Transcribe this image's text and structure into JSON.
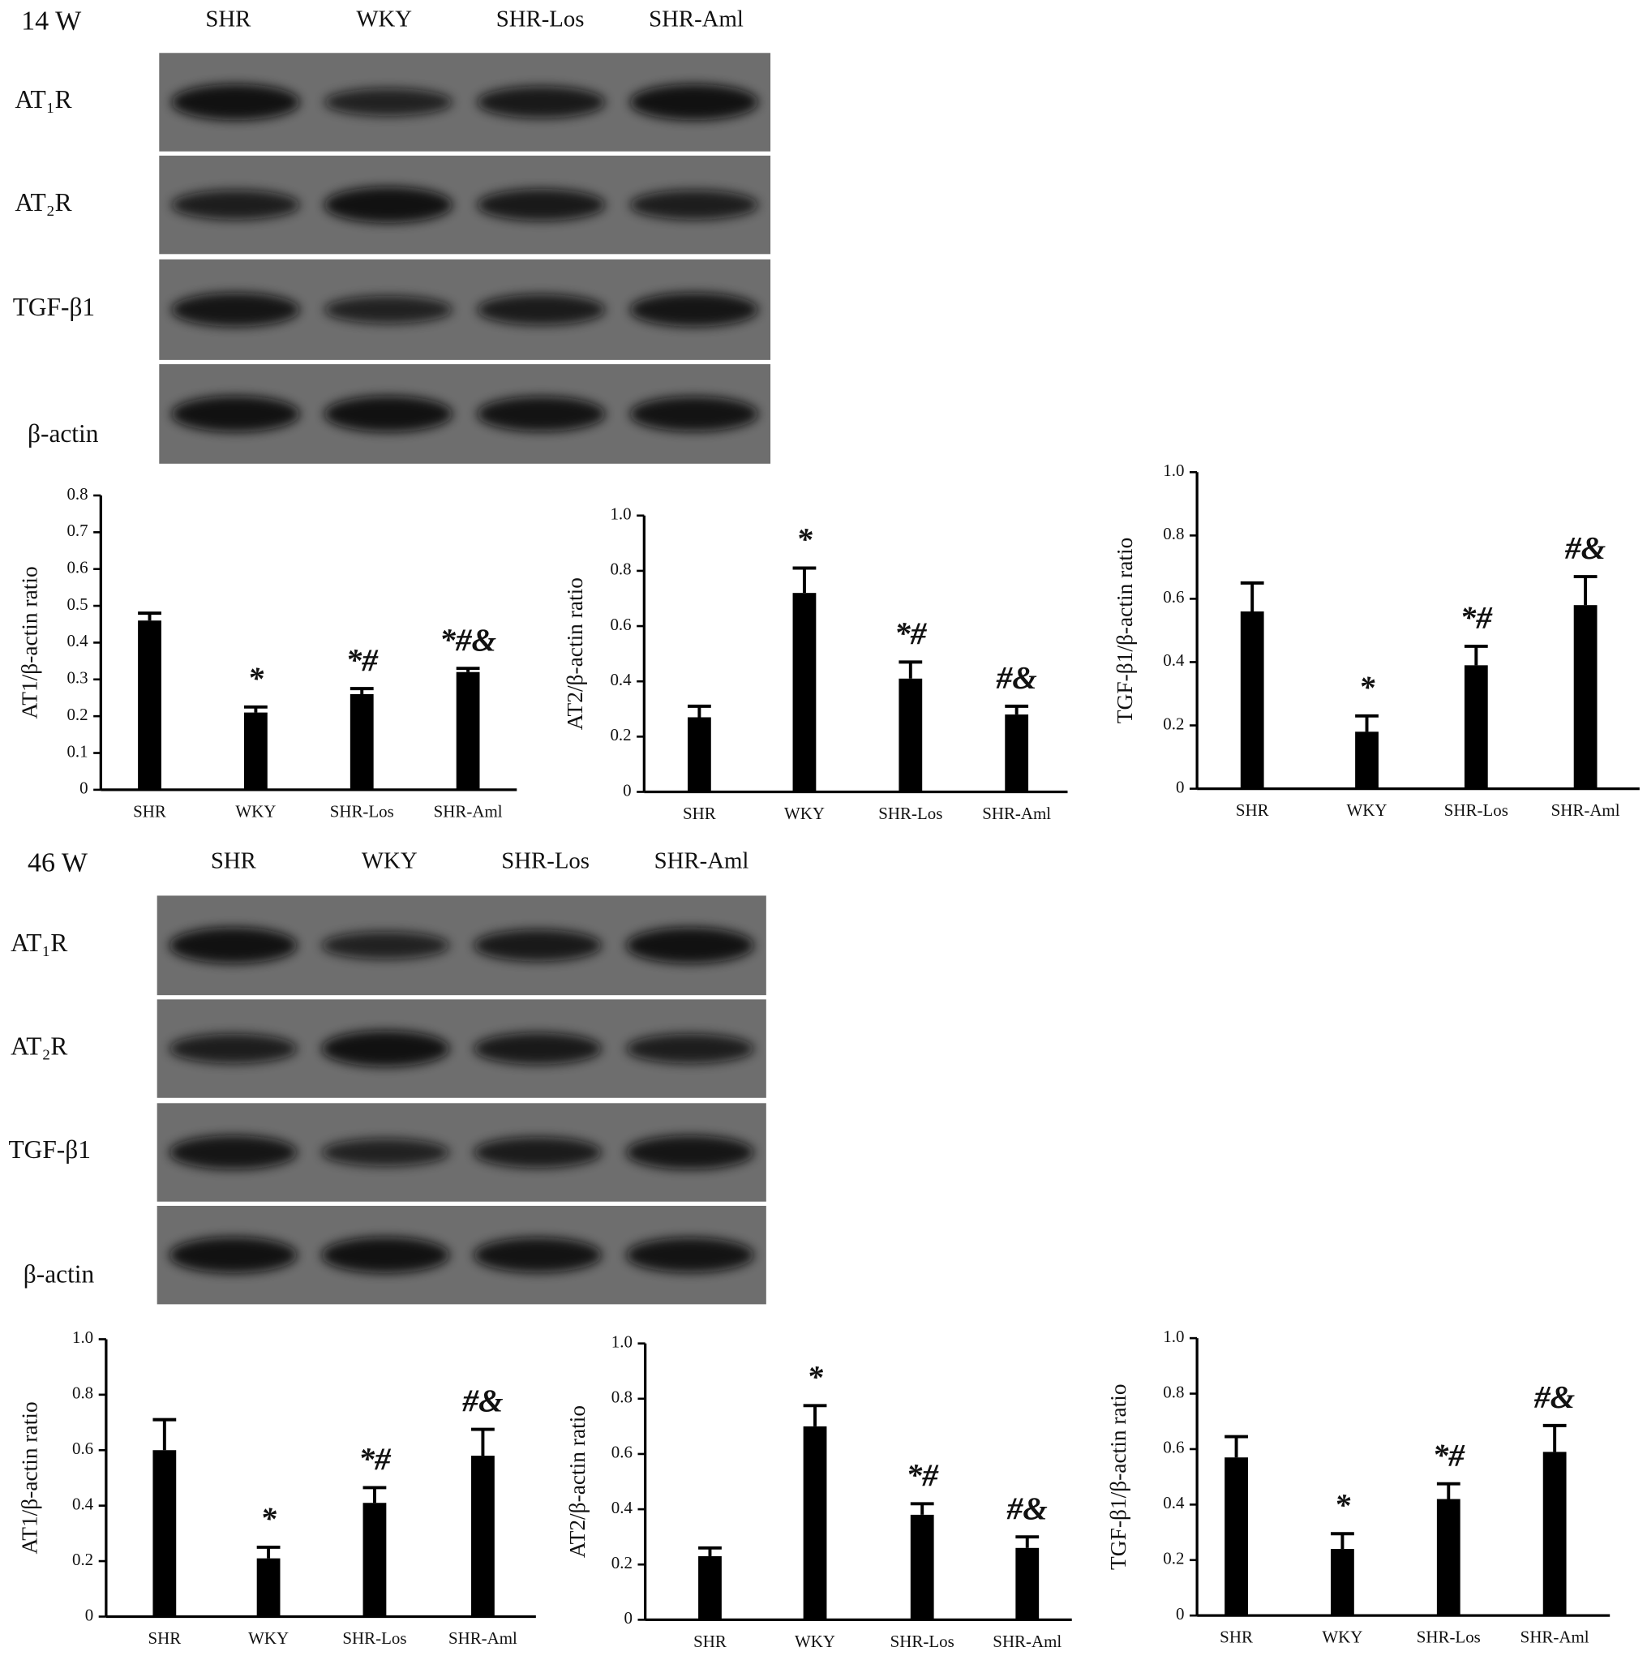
{
  "blots": [
    {
      "title": "14 W",
      "lanes": [
        "SHR",
        "WKY",
        "SHR-Los",
        "SHR-Aml"
      ],
      "proteins": [
        "AT₁R",
        "AT₂R",
        "TGF-β1",
        "β-actin"
      ]
    },
    {
      "title": "46 W",
      "lanes": [
        "SHR",
        "WKY",
        "SHR-Los",
        "SHR-Aml"
      ],
      "proteins": [
        "AT₁R",
        "AT₂R",
        "TGF-β1",
        "β-actin"
      ]
    }
  ],
  "chart_data": [
    {
      "type": "bar",
      "ylabel": "AT1/β-actin ratio",
      "categories": [
        "SHR",
        "WKY",
        "SHR-Los",
        "SHR-Aml"
      ],
      "values": [
        0.46,
        0.21,
        0.26,
        0.32
      ],
      "errors": [
        0.02,
        0.015,
        0.015,
        0.01
      ],
      "annotations": [
        null,
        "*",
        "*#",
        "*#&"
      ],
      "color": "#000000",
      "ylim": [
        0,
        0.8
      ],
      "yticks": [
        0,
        0.1,
        0.2,
        0.3,
        0.4,
        0.5,
        0.6,
        0.7,
        0.8
      ]
    },
    {
      "type": "bar",
      "ylabel": "AT2/β-actin ratio",
      "categories": [
        "SHR",
        "WKY",
        "SHR-Los",
        "SHR-Aml"
      ],
      "values": [
        0.27,
        0.72,
        0.41,
        0.28
      ],
      "errors": [
        0.04,
        0.09,
        0.06,
        0.03
      ],
      "annotations": [
        null,
        "*",
        "*#",
        "#&"
      ],
      "color": "#000000",
      "ylim": [
        0,
        1
      ],
      "yticks": [
        0,
        0.2,
        0.4,
        0.6,
        0.8,
        {
          "value": 1,
          "label": "1.0"
        }
      ]
    },
    {
      "type": "bar",
      "ylabel": "TGF-β1/β-actin ratio",
      "categories": [
        "SHR",
        "WKY",
        "SHR-Los",
        "SHR-Aml"
      ],
      "values": [
        0.56,
        0.18,
        0.39,
        0.58
      ],
      "errors": [
        0.09,
        0.05,
        0.06,
        0.09
      ],
      "annotations": [
        null,
        "*",
        "*#",
        "#&"
      ],
      "color": "#000000",
      "ylim": [
        0,
        1
      ],
      "yticks": [
        0,
        0.2,
        0.4,
        0.6,
        0.8,
        {
          "value": 1,
          "label": "1.0"
        }
      ]
    },
    {
      "type": "bar",
      "ylabel": "AT1/β-actin ratio",
      "categories": [
        "SHR",
        "WKY",
        "SHR-Los",
        "SHR-Aml"
      ],
      "values": [
        0.6,
        0.21,
        0.41,
        0.58
      ],
      "errors": [
        0.11,
        0.04,
        0.055,
        0.095
      ],
      "annotations": [
        null,
        "*",
        "*#",
        "#&"
      ],
      "color": "#000000",
      "ylim": [
        0,
        1
      ],
      "yticks": [
        0,
        0.2,
        0.4,
        0.6,
        0.8,
        {
          "value": 1,
          "label": "1.0"
        }
      ]
    },
    {
      "type": "bar",
      "ylabel": "AT2/β-actin ratio",
      "categories": [
        "SHR",
        "WKY",
        "SHR-Los",
        "SHR-Aml"
      ],
      "values": [
        0.23,
        0.7,
        0.38,
        0.26
      ],
      "errors": [
        0.03,
        0.075,
        0.04,
        0.04
      ],
      "annotations": [
        null,
        "*",
        "*#",
        "#&"
      ],
      "color": "#000000",
      "ylim": [
        0,
        1
      ],
      "yticks": [
        0,
        0.2,
        0.4,
        0.6,
        0.8,
        {
          "value": 1,
          "label": "1.0"
        }
      ]
    },
    {
      "type": "bar",
      "ylabel": "TGF-β1/β-actin ratio",
      "categories": [
        "SHR",
        "WKY",
        "SHR-Los",
        "SHR-Aml"
      ],
      "values": [
        0.57,
        0.24,
        0.42,
        0.59
      ],
      "errors": [
        0.075,
        0.055,
        0.055,
        0.095
      ],
      "annotations": [
        null,
        "*",
        "*#",
        "#&"
      ],
      "color": "#000000",
      "ylim": [
        0,
        1
      ],
      "yticks": [
        0,
        0.2,
        0.4,
        0.6,
        0.8,
        {
          "value": 1,
          "label": "1.0"
        }
      ]
    }
  ]
}
